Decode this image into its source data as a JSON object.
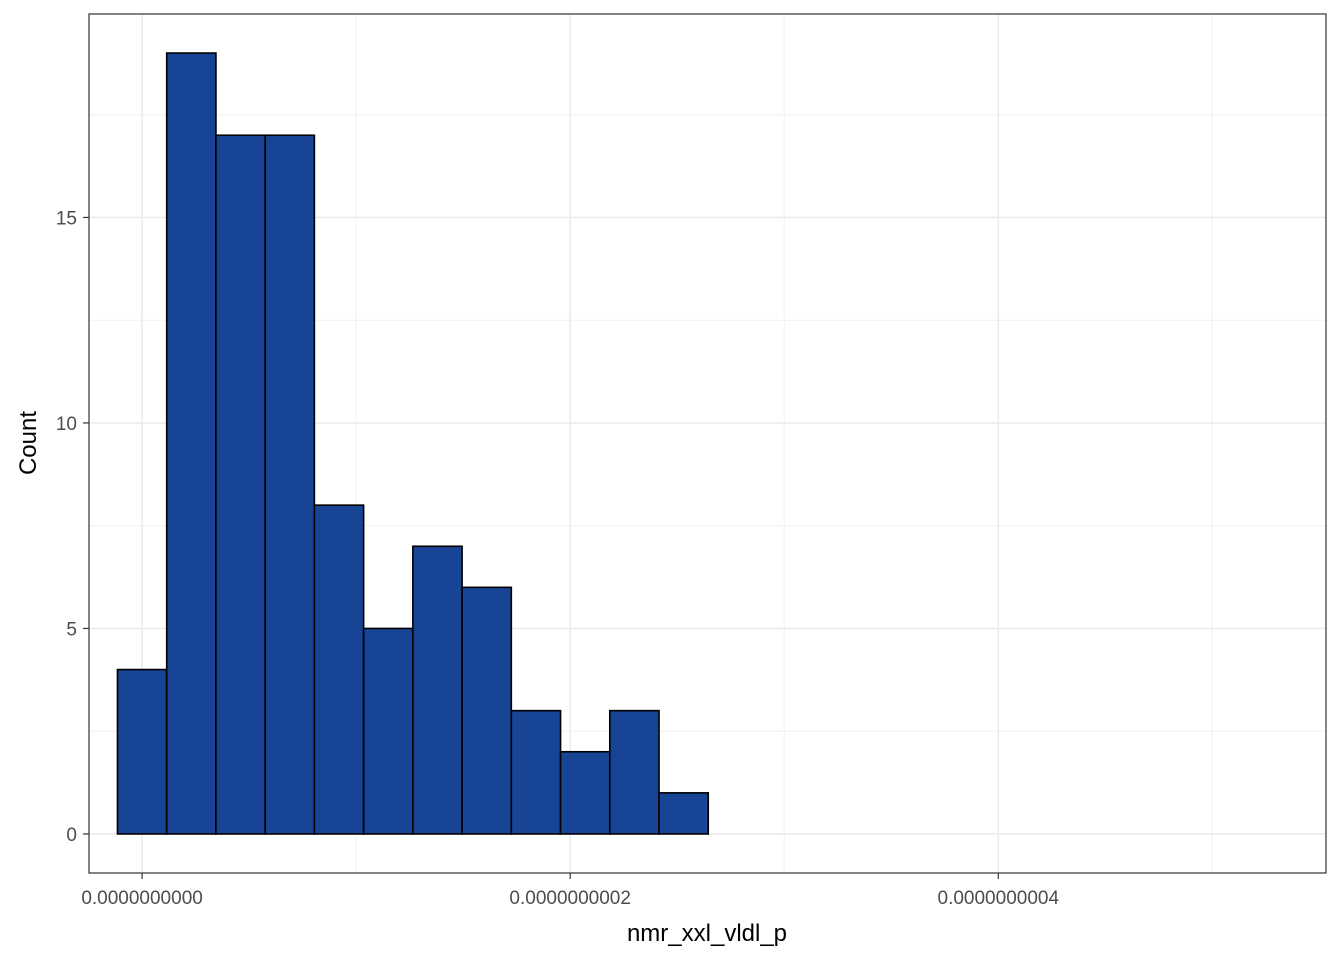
{
  "chart_data": {
    "type": "bar",
    "xlabel": "nmr_xxl_vldl_p",
    "ylabel": "Count",
    "bin_width": 2.3e-11,
    "bin_start": -1.15e-11,
    "counts": [
      4,
      19,
      17,
      17,
      8,
      5,
      7,
      6,
      3,
      2,
      3,
      1
    ],
    "xlim": [
      -2.48e-11,
      5.531e-10
    ],
    "ylim": [
      -0.95,
      19.95
    ],
    "x_major_ticks": [
      0,
      2e-10,
      4e-10
    ],
    "x_tick_labels": [
      "0.0000000000",
      "0.0000000002",
      "0.0000000004"
    ],
    "x_minor_ticks": [
      1e-10,
      3e-10,
      5e-10
    ],
    "y_major_ticks": [
      0,
      5,
      10,
      15
    ],
    "y_tick_labels": [
      "0",
      "5",
      "10",
      "15"
    ],
    "y_minor_ticks": [
      2.5,
      7.5,
      12.5,
      17.5
    ],
    "grid": true,
    "bar_fill": "#184496",
    "bar_stroke": "#000000"
  }
}
